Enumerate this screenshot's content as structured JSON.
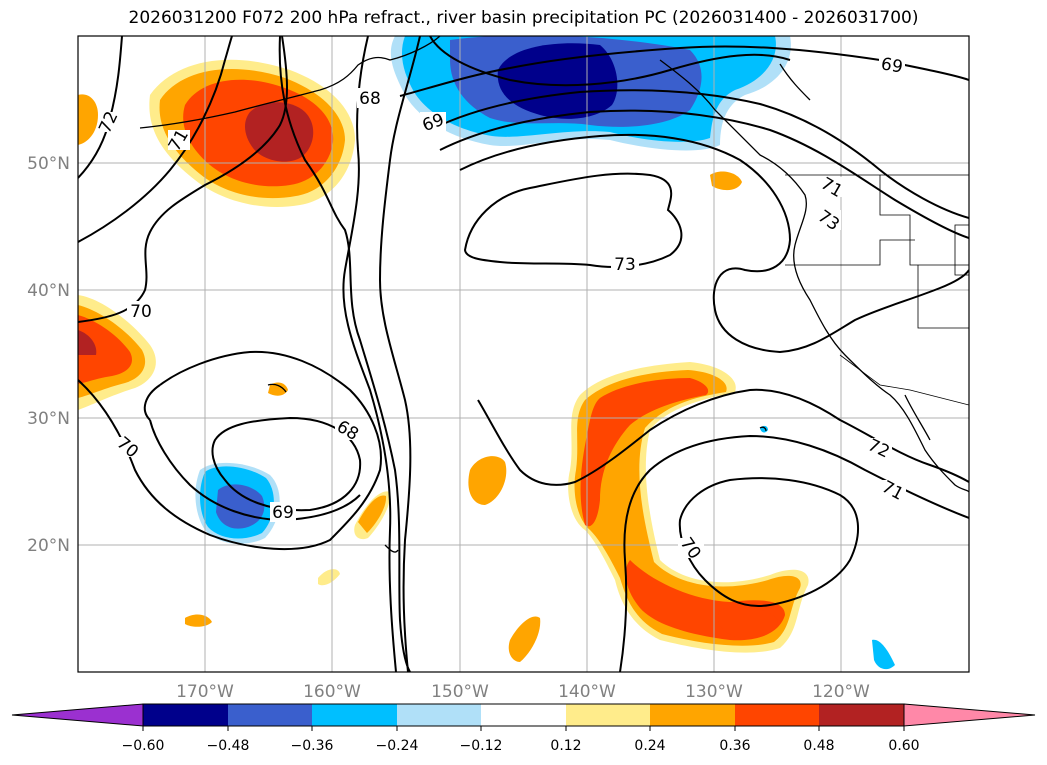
{
  "title": "2026031200 F072 200 hPa refract., river basin precipitation PC (2026031400 - 2026031700)",
  "lat_labels": [
    "50°N",
    "40°N",
    "30°N",
    "20°N"
  ],
  "lon_labels": [
    "170°W",
    "160°W",
    "150°W",
    "140°W",
    "130°W",
    "120°W"
  ],
  "contour_labels": [
    "72",
    "71",
    "70",
    "68",
    "69",
    "68",
    "73",
    "71",
    "73",
    "69",
    "70",
    "69",
    "72",
    "71",
    "70"
  ],
  "colorbar": {
    "ticks": [
      "−0.60",
      "−0.48",
      "−0.36",
      "−0.24",
      "−0.12",
      "0.12",
      "0.24",
      "0.36",
      "0.48",
      "0.60"
    ],
    "colors": [
      "#9b30d0",
      "#00008b",
      "#3a5fcd",
      "#00bfff",
      "#b0e0f8",
      "#ffffff",
      "#ffec8b",
      "#ffa500",
      "#ff4500",
      "#b22222",
      "#ff88a8"
    ]
  },
  "colors": {
    "grid": "#b0b0b0",
    "contour": "#000000",
    "label_gray": "#808080"
  }
}
